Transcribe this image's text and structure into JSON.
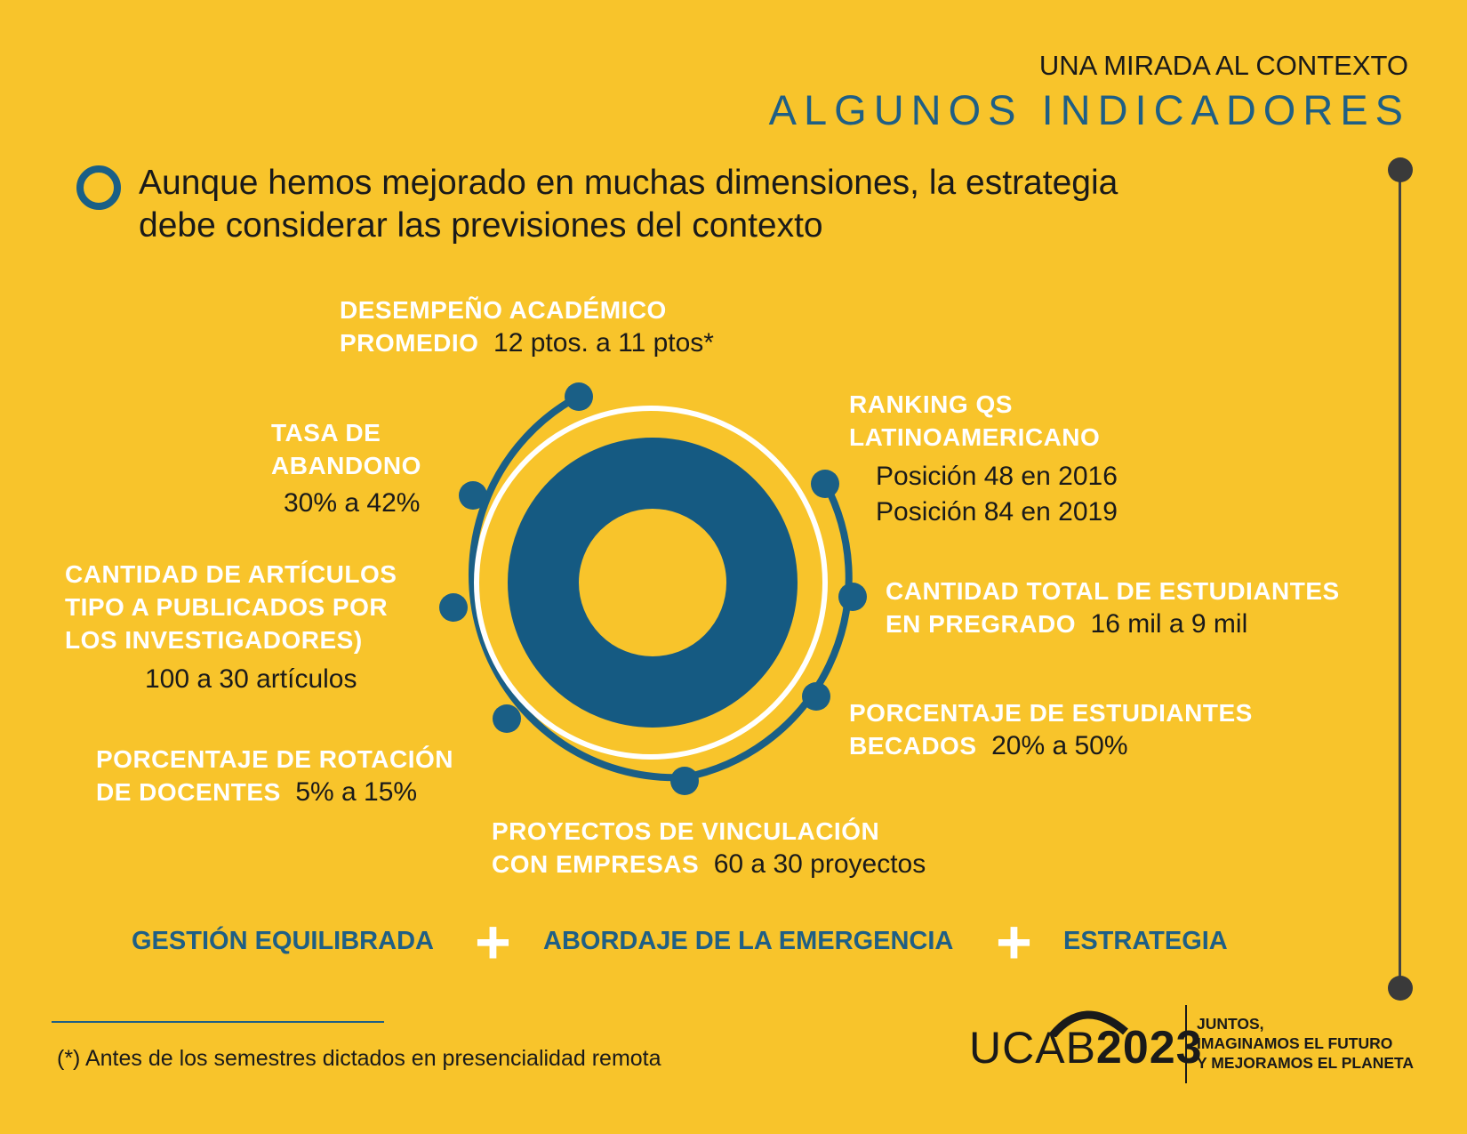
{
  "header": {
    "kicker": "UNA MIRADA AL CONTEXTO",
    "title": "ALGUNOS INDICADORES"
  },
  "intro": {
    "line1": "Aunque hemos mejorado en muchas dimensiones, la estrategia",
    "line2": "debe considerar las previsiones del contexto"
  },
  "indicators": [
    {
      "label_1": "DESEMPEÑO ACADÉMICO",
      "label_2": "PROMEDIO",
      "value": "12 ptos. a 11 ptos*"
    },
    {
      "label_1": "RANKING QS",
      "label_2": "LATINOAMERICANO",
      "value_1": "Posición 48 en 2016",
      "value_2": "Posición 84 en 2019"
    },
    {
      "label_1": "CANTIDAD TOTAL DE ESTUDIANTES",
      "label_2": "EN PREGRADO",
      "value": "16 mil a 9 mil"
    },
    {
      "label_1": "PORCENTAJE DE ESTUDIANTES",
      "label_2": "BECADOS",
      "value": "20% a 50%"
    },
    {
      "label_1": "PROYECTOS DE VINCULACIÓN",
      "label_2": "CON EMPRESAS",
      "value": "60 a 30 proyectos"
    },
    {
      "label_1": "PORCENTAJE DE ROTACIÓN",
      "label_2": "DE DOCENTES",
      "value": "5% a 15%"
    },
    {
      "label_1": "CANTIDAD DE ARTÍCULOS",
      "label_2": "TIPO A PUBLICADOS POR",
      "label_3": "LOS INVESTIGADORES)",
      "value": "100 a 30 artículos"
    },
    {
      "label_1": "TASA DE",
      "label_2": "ABANDONO",
      "value": "30% a 42%"
    }
  ],
  "formula": {
    "item_1": "GESTIÓN EQUILIBRADA",
    "plus": "+",
    "item_2": "ABORDAJE DE LA EMERGENCIA",
    "item_3": "ESTRATEGIA"
  },
  "footnote": "(*) Antes de los semestres dictados en presencialidad remota",
  "logo": {
    "brand": "UCAB",
    "year": "2023",
    "tagline_1": "JUNTOS,",
    "tagline_2": "IMAGINAMOS EL FUTURO",
    "tagline_3": "Y MEJORAMOS EL PLANETA"
  },
  "colors": {
    "background": "#f8c42b",
    "accent_blue": "#1a5f86",
    "white": "#ffffff",
    "dark": "#1a1a1a"
  }
}
